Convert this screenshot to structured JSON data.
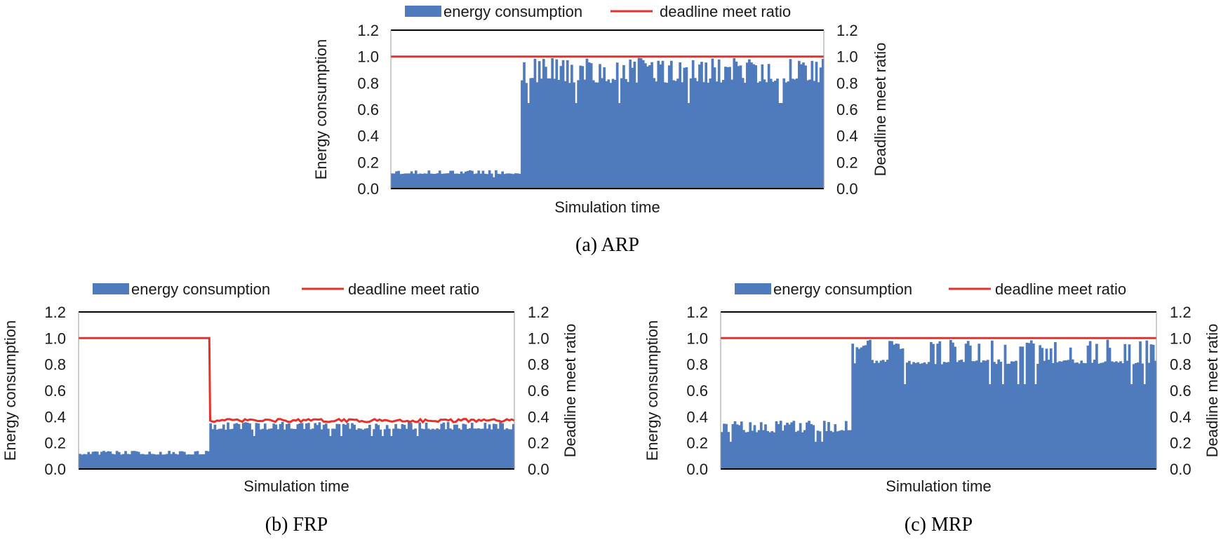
{
  "colors": {
    "energy": "#4f7bbd",
    "deadline": "#e8302a",
    "frame": "#000000"
  },
  "chart_data": [
    {
      "id": "arp",
      "type": "bar+line",
      "caption": "(a) ARP",
      "legend": [
        "energy consumption",
        "deadline meet ratio"
      ],
      "xlabel": "Simulation time",
      "ylabel_left": "Energy consumption",
      "ylabel_right": "Deadline meet ratio",
      "yticks_left": [
        "0.0",
        "0.2",
        "0.4",
        "0.6",
        "0.8",
        "1.0",
        "1.2"
      ],
      "yticks_right": [
        "0.0",
        "0.2",
        "0.4",
        "0.6",
        "0.8",
        "1.0",
        "1.2"
      ],
      "ylim": [
        0,
        1.2
      ],
      "n_samples": 200,
      "series": [
        {
          "name": "energy consumption",
          "kind": "bar",
          "segments": [
            {
              "from": 0.0,
              "to": 0.3,
              "base": 0.11,
              "peak": 0.14
            },
            {
              "from": 0.3,
              "to": 1.0,
              "base": 0.8,
              "peak": 0.99
            }
          ]
        },
        {
          "name": "deadline meet ratio",
          "kind": "line",
          "segments": [
            {
              "from": 0.0,
              "to": 1.0,
              "value": 1.0
            }
          ]
        }
      ]
    },
    {
      "id": "frp",
      "type": "bar+line",
      "caption": "(b) FRP",
      "legend": [
        "energy consumption",
        "deadline meet ratio"
      ],
      "xlabel": "Simulation time",
      "ylabel_left": "Energy consumption",
      "ylabel_right": "Deadline meet ratio",
      "yticks_left": [
        "0.0",
        "0.2",
        "0.4",
        "0.6",
        "0.8",
        "1.0",
        "1.2"
      ],
      "yticks_right": [
        "0.0",
        "0.2",
        "0.4",
        "0.6",
        "0.8",
        "1.0",
        "1.2"
      ],
      "ylim": [
        0,
        1.2
      ],
      "n_samples": 200,
      "series": [
        {
          "name": "energy consumption",
          "kind": "bar",
          "segments": [
            {
              "from": 0.0,
              "to": 0.3,
              "base": 0.11,
              "peak": 0.14
            },
            {
              "from": 0.3,
              "to": 1.0,
              "base": 0.3,
              "peak": 0.36
            }
          ]
        },
        {
          "name": "deadline meet ratio",
          "kind": "line",
          "segments": [
            {
              "from": 0.0,
              "to": 0.3,
              "value": 1.0
            },
            {
              "from": 0.3,
              "to": 1.0,
              "value": 0.37,
              "jitter": 0.012
            }
          ]
        }
      ]
    },
    {
      "id": "mrp",
      "type": "bar+line",
      "caption": "(c) MRP",
      "legend": [
        "energy consumption",
        "deadline meet ratio"
      ],
      "xlabel": "Simulation time",
      "ylabel_left": "Energy consumption",
      "ylabel_right": "Deadline meet ratio",
      "yticks_left": [
        "0.0",
        "0.2",
        "0.4",
        "0.6",
        "0.8",
        "1.0",
        "1.2"
      ],
      "yticks_right": [
        "0.0",
        "0.2",
        "0.4",
        "0.6",
        "0.8",
        "1.0",
        "1.2"
      ],
      "ylim": [
        0,
        1.2
      ],
      "n_samples": 200,
      "series": [
        {
          "name": "energy consumption",
          "kind": "bar",
          "segments": [
            {
              "from": 0.0,
              "to": 0.3,
              "base": 0.28,
              "peak": 0.37
            },
            {
              "from": 0.3,
              "to": 1.0,
              "base": 0.8,
              "peak": 0.99
            }
          ]
        },
        {
          "name": "deadline meet ratio",
          "kind": "line",
          "segments": [
            {
              "from": 0.0,
              "to": 1.0,
              "value": 1.0
            }
          ]
        }
      ]
    }
  ]
}
